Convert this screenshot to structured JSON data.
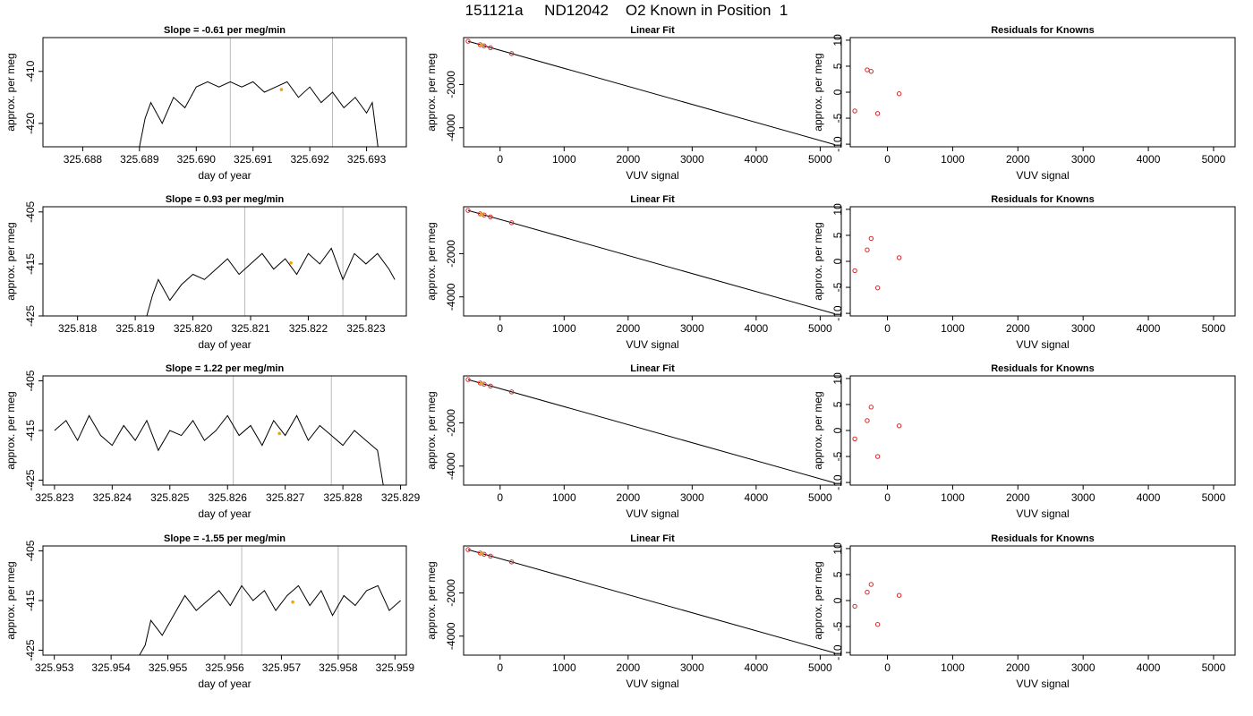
{
  "figure_title": "151121a     ND12042    O2 Known in Position  1",
  "chart_data": [
    {
      "type": "line",
      "title": "Slope =  -0.61  per meg/min",
      "xlabel": "day of year",
      "ylabel": "approx. per meg",
      "xlim": [
        325.6873,
        325.6937
      ],
      "ylim": [
        -424.5,
        -403.5
      ],
      "xticks": [
        "325.688",
        "325.689",
        "325.690",
        "325.691",
        "325.692",
        "325.693"
      ],
      "yticks": [
        "-410",
        "-420"
      ],
      "vlines": [
        325.6906,
        325.6924
      ],
      "series": [
        {
          "x": [
            325.689,
            325.6891,
            325.6892,
            325.6894,
            325.6896,
            325.6898,
            325.69,
            325.6902,
            325.6904,
            325.6906,
            325.6908,
            325.691,
            325.6912,
            325.6914,
            325.6916,
            325.6918,
            325.692,
            325.6922,
            325.6924,
            325.6926,
            325.6928,
            325.693,
            325.6931,
            325.6932
          ],
          "y": [
            -424.5,
            -419,
            -416,
            -420,
            -415,
            -417,
            -413,
            -412,
            -413,
            -412,
            -413,
            -412,
            -414,
            -413,
            -412,
            -415,
            -413,
            -416,
            -414,
            -417,
            -415,
            -418,
            -416,
            -424.5
          ]
        }
      ],
      "highlight": {
        "x": 325.6915,
        "y": -413.5,
        "color": "#f0a500"
      }
    },
    {
      "type": "scatter",
      "title": "Linear Fit",
      "xlabel": "VUV signal",
      "ylabel": "approx. per meg",
      "xlim": [
        -570,
        5330
      ],
      "ylim": [
        -4880,
        170
      ],
      "xticks": [
        "0",
        "1000",
        "2000",
        "3000",
        "4000",
        "5000"
      ],
      "yticks": [
        "-2000",
        "-4000"
      ],
      "fit_line": {
        "x": [
          -500,
          5230
        ],
        "y": [
          0,
          -4780
        ]
      },
      "points": {
        "x": [
          -500,
          -310,
          -250,
          -150,
          180
        ],
        "y": [
          0,
          -160,
          -210,
          -300,
          -570
        ]
      },
      "highlight": {
        "x": -290,
        "y": -175,
        "color": "#f0a500"
      }
    },
    {
      "type": "scatter",
      "title": "Residuals for Knowns",
      "xlabel": "VUV signal",
      "ylabel": "approx. per meg",
      "xlim": [
        -570,
        5330
      ],
      "ylim": [
        -10.5,
        10.5
      ],
      "xticks": [
        "0",
        "1000",
        "2000",
        "3000",
        "4000",
        "5000"
      ],
      "yticks": [
        "10",
        "5",
        "0",
        "-5",
        "-10"
      ],
      "points": {
        "x": [
          -500,
          -310,
          -250,
          -150,
          180
        ],
        "y": [
          -3.6,
          4.3,
          4.0,
          -4.1,
          -0.3
        ]
      }
    },
    {
      "type": "line",
      "title": "Slope =  0.93  per meg/min",
      "xlabel": "day of year",
      "ylabel": "approx. per meg",
      "xlim": [
        325.8174,
        325.8237
      ],
      "ylim": [
        -425,
        -404
      ],
      "xticks": [
        "325.818",
        "325.819",
        "325.820",
        "325.821",
        "325.822",
        "325.823"
      ],
      "yticks": [
        "-405",
        "-415",
        "-425"
      ],
      "vlines": [
        325.8209,
        325.8226
      ],
      "series": [
        {
          "x": [
            325.8192,
            325.8193,
            325.8194,
            325.8196,
            325.8198,
            325.82,
            325.8202,
            325.8204,
            325.8206,
            325.8208,
            325.821,
            325.8212,
            325.8214,
            325.8216,
            325.8218,
            325.822,
            325.8222,
            325.8224,
            325.8226,
            325.8228,
            325.823,
            325.8232,
            325.8234,
            325.8235
          ],
          "y": [
            -425,
            -421,
            -418,
            -422,
            -419,
            -417,
            -418,
            -416,
            -414,
            -417,
            -415,
            -413,
            -416,
            -414,
            -417,
            -413,
            -415,
            -412,
            -418,
            -413,
            -415,
            -413,
            -416,
            -418
          ]
        }
      ],
      "highlight": {
        "x": 325.8217,
        "y": -414.8,
        "color": "#f0a500"
      }
    },
    {
      "type": "scatter",
      "title": "Linear Fit",
      "xlabel": "VUV signal",
      "ylabel": "approx. per meg",
      "xlim": [
        -570,
        5330
      ],
      "ylim": [
        -4880,
        170
      ],
      "xticks": [
        "0",
        "1000",
        "2000",
        "3000",
        "4000",
        "5000"
      ],
      "yticks": [
        "-2000",
        "-4000"
      ],
      "fit_line": {
        "x": [
          -500,
          5230
        ],
        "y": [
          0,
          -4780
        ]
      },
      "points": {
        "x": [
          -500,
          -310,
          -250,
          -150,
          180
        ],
        "y": [
          0,
          -160,
          -210,
          -300,
          -570
        ]
      },
      "highlight": {
        "x": -290,
        "y": -175,
        "color": "#f0a500"
      }
    },
    {
      "type": "scatter",
      "title": "Residuals for Knowns",
      "xlabel": "VUV signal",
      "ylabel": "approx. per meg",
      "xlim": [
        -570,
        5330
      ],
      "ylim": [
        -10.5,
        10.5
      ],
      "xticks": [
        "0",
        "1000",
        "2000",
        "3000",
        "4000",
        "5000"
      ],
      "yticks": [
        "10",
        "5",
        "0",
        "-5",
        "-10"
      ],
      "points": {
        "x": [
          -500,
          -310,
          -250,
          -150,
          180
        ],
        "y": [
          -1.8,
          2.2,
          4.4,
          -5.1,
          0.7
        ]
      }
    },
    {
      "type": "line",
      "title": "Slope =  1.22  per meg/min",
      "xlabel": "day of year",
      "ylabel": "approx. per meg",
      "xlim": [
        325.8228,
        325.8291
      ],
      "ylim": [
        -426,
        -404
      ],
      "xticks": [
        "325.823",
        "325.824",
        "325.825",
        "325.826",
        "325.827",
        "325.828",
        "325.829"
      ],
      "yticks": [
        "-405",
        "-415",
        "-425"
      ],
      "vlines": [
        325.8261,
        325.8278
      ],
      "series": [
        {
          "x": [
            325.823,
            325.8232,
            325.8234,
            325.8236,
            325.8238,
            325.824,
            325.8242,
            325.8244,
            325.8246,
            325.8248,
            325.825,
            325.8252,
            325.8254,
            325.8256,
            325.8258,
            325.826,
            325.8262,
            325.8264,
            325.8266,
            325.8268,
            325.827,
            325.8272,
            325.8274,
            325.8276,
            325.8278,
            325.828,
            325.8282,
            325.8284,
            325.8286,
            325.8287
          ],
          "y": [
            -415,
            -413,
            -417,
            -412,
            -416,
            -418,
            -414,
            -417,
            -413,
            -419,
            -415,
            -416,
            -413,
            -417,
            -415,
            -412,
            -416,
            -414,
            -418,
            -413,
            -416,
            -412,
            -417,
            -414,
            -416,
            -418,
            -415,
            -417,
            -419,
            -426
          ]
        }
      ],
      "highlight": {
        "x": 325.8269,
        "y": -415.6,
        "color": "#f0a500"
      }
    },
    {
      "type": "scatter",
      "title": "Linear Fit",
      "xlabel": "VUV signal",
      "ylabel": "approx. per meg",
      "xlim": [
        -570,
        5330
      ],
      "ylim": [
        -4880,
        170
      ],
      "xticks": [
        "0",
        "1000",
        "2000",
        "3000",
        "4000",
        "5000"
      ],
      "yticks": [
        "-2000",
        "-4000"
      ],
      "fit_line": {
        "x": [
          -500,
          5230
        ],
        "y": [
          0,
          -4780
        ]
      },
      "points": {
        "x": [
          -500,
          -310,
          -250,
          -150,
          180
        ],
        "y": [
          0,
          -160,
          -210,
          -300,
          -570
        ]
      },
      "highlight": {
        "x": -290,
        "y": -175,
        "color": "#f0a500"
      }
    },
    {
      "type": "scatter",
      "title": "Residuals for Knowns",
      "xlabel": "VUV signal",
      "ylabel": "approx. per meg",
      "xlim": [
        -570,
        5330
      ],
      "ylim": [
        -10.5,
        10.5
      ],
      "xticks": [
        "0",
        "1000",
        "2000",
        "3000",
        "4000",
        "5000"
      ],
      "yticks": [
        "10",
        "5",
        "0",
        "-5",
        "-10"
      ],
      "points": {
        "x": [
          -500,
          -310,
          -250,
          -150,
          180
        ],
        "y": [
          -1.6,
          1.9,
          4.5,
          -5.0,
          0.9
        ]
      }
    },
    {
      "type": "line",
      "title": "Slope =  -1.55  per meg/min",
      "xlabel": "day of year",
      "ylabel": "approx. per meg",
      "xlim": [
        325.9528,
        325.9592
      ],
      "ylim": [
        -426,
        -404
      ],
      "xticks": [
        "325.953",
        "325.954",
        "325.955",
        "325.956",
        "325.957",
        "325.958",
        "325.959"
      ],
      "yticks": [
        "-405",
        "-415",
        "-425"
      ],
      "vlines": [
        325.9563,
        325.958
      ],
      "series": [
        {
          "x": [
            325.9545,
            325.9546,
            325.9547,
            325.9549,
            325.9551,
            325.9553,
            325.9555,
            325.9557,
            325.9559,
            325.9561,
            325.9563,
            325.9565,
            325.9567,
            325.9569,
            325.9571,
            325.9573,
            325.9575,
            325.9577,
            325.9579,
            325.9581,
            325.9583,
            325.9585,
            325.9587,
            325.9589,
            325.9591
          ],
          "y": [
            -426,
            -424,
            -419,
            -422,
            -418,
            -414,
            -417,
            -415,
            -413,
            -416,
            -412,
            -415,
            -413,
            -417,
            -414,
            -412,
            -416,
            -413,
            -418,
            -414,
            -416,
            -413,
            -412,
            -417,
            -415
          ]
        }
      ],
      "highlight": {
        "x": 325.9572,
        "y": -415.3,
        "color": "#f0a500"
      }
    },
    {
      "type": "scatter",
      "title": "Linear Fit",
      "xlabel": "VUV signal",
      "ylabel": "approx. per meg",
      "xlim": [
        -570,
        5330
      ],
      "ylim": [
        -4880,
        170
      ],
      "xticks": [
        "0",
        "1000",
        "2000",
        "3000",
        "4000",
        "5000"
      ],
      "yticks": [
        "-2000",
        "-4000"
      ],
      "fit_line": {
        "x": [
          -500,
          5230
        ],
        "y": [
          0,
          -4780
        ]
      },
      "points": {
        "x": [
          -500,
          -310,
          -250,
          -150,
          180
        ],
        "y": [
          0,
          -160,
          -210,
          -300,
          -570
        ]
      },
      "highlight": {
        "x": -290,
        "y": -175,
        "color": "#f0a500"
      }
    },
    {
      "type": "scatter",
      "title": "Residuals for Knowns",
      "xlabel": "VUV signal",
      "ylabel": "approx. per meg",
      "xlim": [
        -570,
        5330
      ],
      "ylim": [
        -10.5,
        10.5
      ],
      "xticks": [
        "0",
        "1000",
        "2000",
        "3000",
        "4000",
        "5000"
      ],
      "yticks": [
        "10",
        "5",
        "0",
        "-5",
        "-10"
      ],
      "points": {
        "x": [
          -500,
          -310,
          -250,
          -150,
          180
        ],
        "y": [
          -1.1,
          1.6,
          3.1,
          -4.6,
          1.0
        ]
      }
    }
  ],
  "colors": {
    "line": "#000000",
    "point": "#d62728",
    "highlight": "#f0a500",
    "vline": "#bbbbbb"
  }
}
